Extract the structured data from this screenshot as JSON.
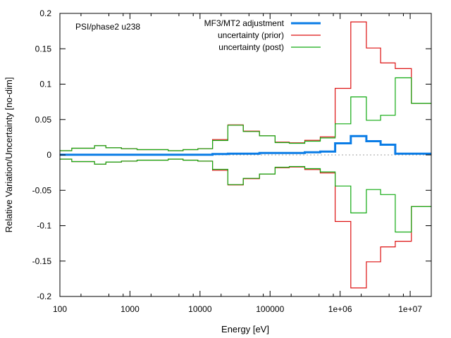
{
  "chart_data": {
    "type": "line",
    "step": true,
    "annotation": "PSI/phase2 u238",
    "xlabel": "Energy [eV]",
    "ylabel": "Relative Variation/Uncertainty [no-dim]",
    "xscale": "log",
    "xlim": [
      100,
      20000000
    ],
    "ylim": [
      -0.2,
      0.2
    ],
    "xticks": [
      {
        "value": 100,
        "label": "100"
      },
      {
        "value": 1000,
        "label": "1000"
      },
      {
        "value": 10000,
        "label": "10000"
      },
      {
        "value": 100000,
        "label": "100000"
      },
      {
        "value": 1000000,
        "label": "1e+06"
      },
      {
        "value": 10000000,
        "label": "1e+07"
      }
    ],
    "yticks": [
      {
        "value": 0.2,
        "label": "0.2"
      },
      {
        "value": 0.15,
        "label": "0.15"
      },
      {
        "value": 0.1,
        "label": "0.1"
      },
      {
        "value": 0.05,
        "label": "0.05"
      },
      {
        "value": 0,
        "label": "0"
      },
      {
        "value": -0.05,
        "label": "-0.05"
      },
      {
        "value": -0.1,
        "label": "-0.1"
      },
      {
        "value": -0.15,
        "label": "-0.15"
      },
      {
        "value": -0.2,
        "label": "-0.2"
      }
    ],
    "legend_position": "top-right",
    "bin_edges": [
      100,
      148,
      312,
      454,
      756,
      1262,
      3510,
      5727,
      9330,
      15100,
      25000,
      41400,
      70500,
      118000,
      188000,
      313000,
      521000,
      850000,
      1420000,
      2370000,
      3780000,
      6120000,
      10400000,
      20000000
    ],
    "series": [
      {
        "name": "MF3/MT2 adjustment",
        "color": "#0a7ce6",
        "mirrored": false,
        "values": [
          0.0002,
          0.0002,
          0.0002,
          0.0002,
          0.0002,
          0.0002,
          0.0002,
          0.0002,
          0.0002,
          0.0012,
          0.0018,
          0.0018,
          0.0028,
          0.0028,
          0.0028,
          0.0038,
          0.0048,
          0.0164,
          0.0266,
          0.0194,
          0.0144,
          0.0018,
          0.0018
        ]
      },
      {
        "name": "uncertainty (prior)",
        "color": "#dd1111",
        "mirrored": true,
        "values": [
          0.006,
          0.0095,
          0.013,
          0.01,
          0.0088,
          0.0075,
          0.006,
          0.0075,
          0.0088,
          0.0217,
          0.0425,
          0.0336,
          0.027,
          0.018,
          0.017,
          0.0207,
          0.0256,
          0.094,
          0.188,
          0.151,
          0.13,
          0.122,
          0.073
        ]
      },
      {
        "name": "uncertainty (post)",
        "color": "#11aa11",
        "mirrored": true,
        "values": [
          0.006,
          0.0095,
          0.013,
          0.01,
          0.0088,
          0.0075,
          0.006,
          0.0075,
          0.0088,
          0.0204,
          0.042,
          0.033,
          0.027,
          0.0174,
          0.0164,
          0.0194,
          0.024,
          0.044,
          0.082,
          0.049,
          0.056,
          0.109,
          0.073
        ]
      }
    ]
  }
}
